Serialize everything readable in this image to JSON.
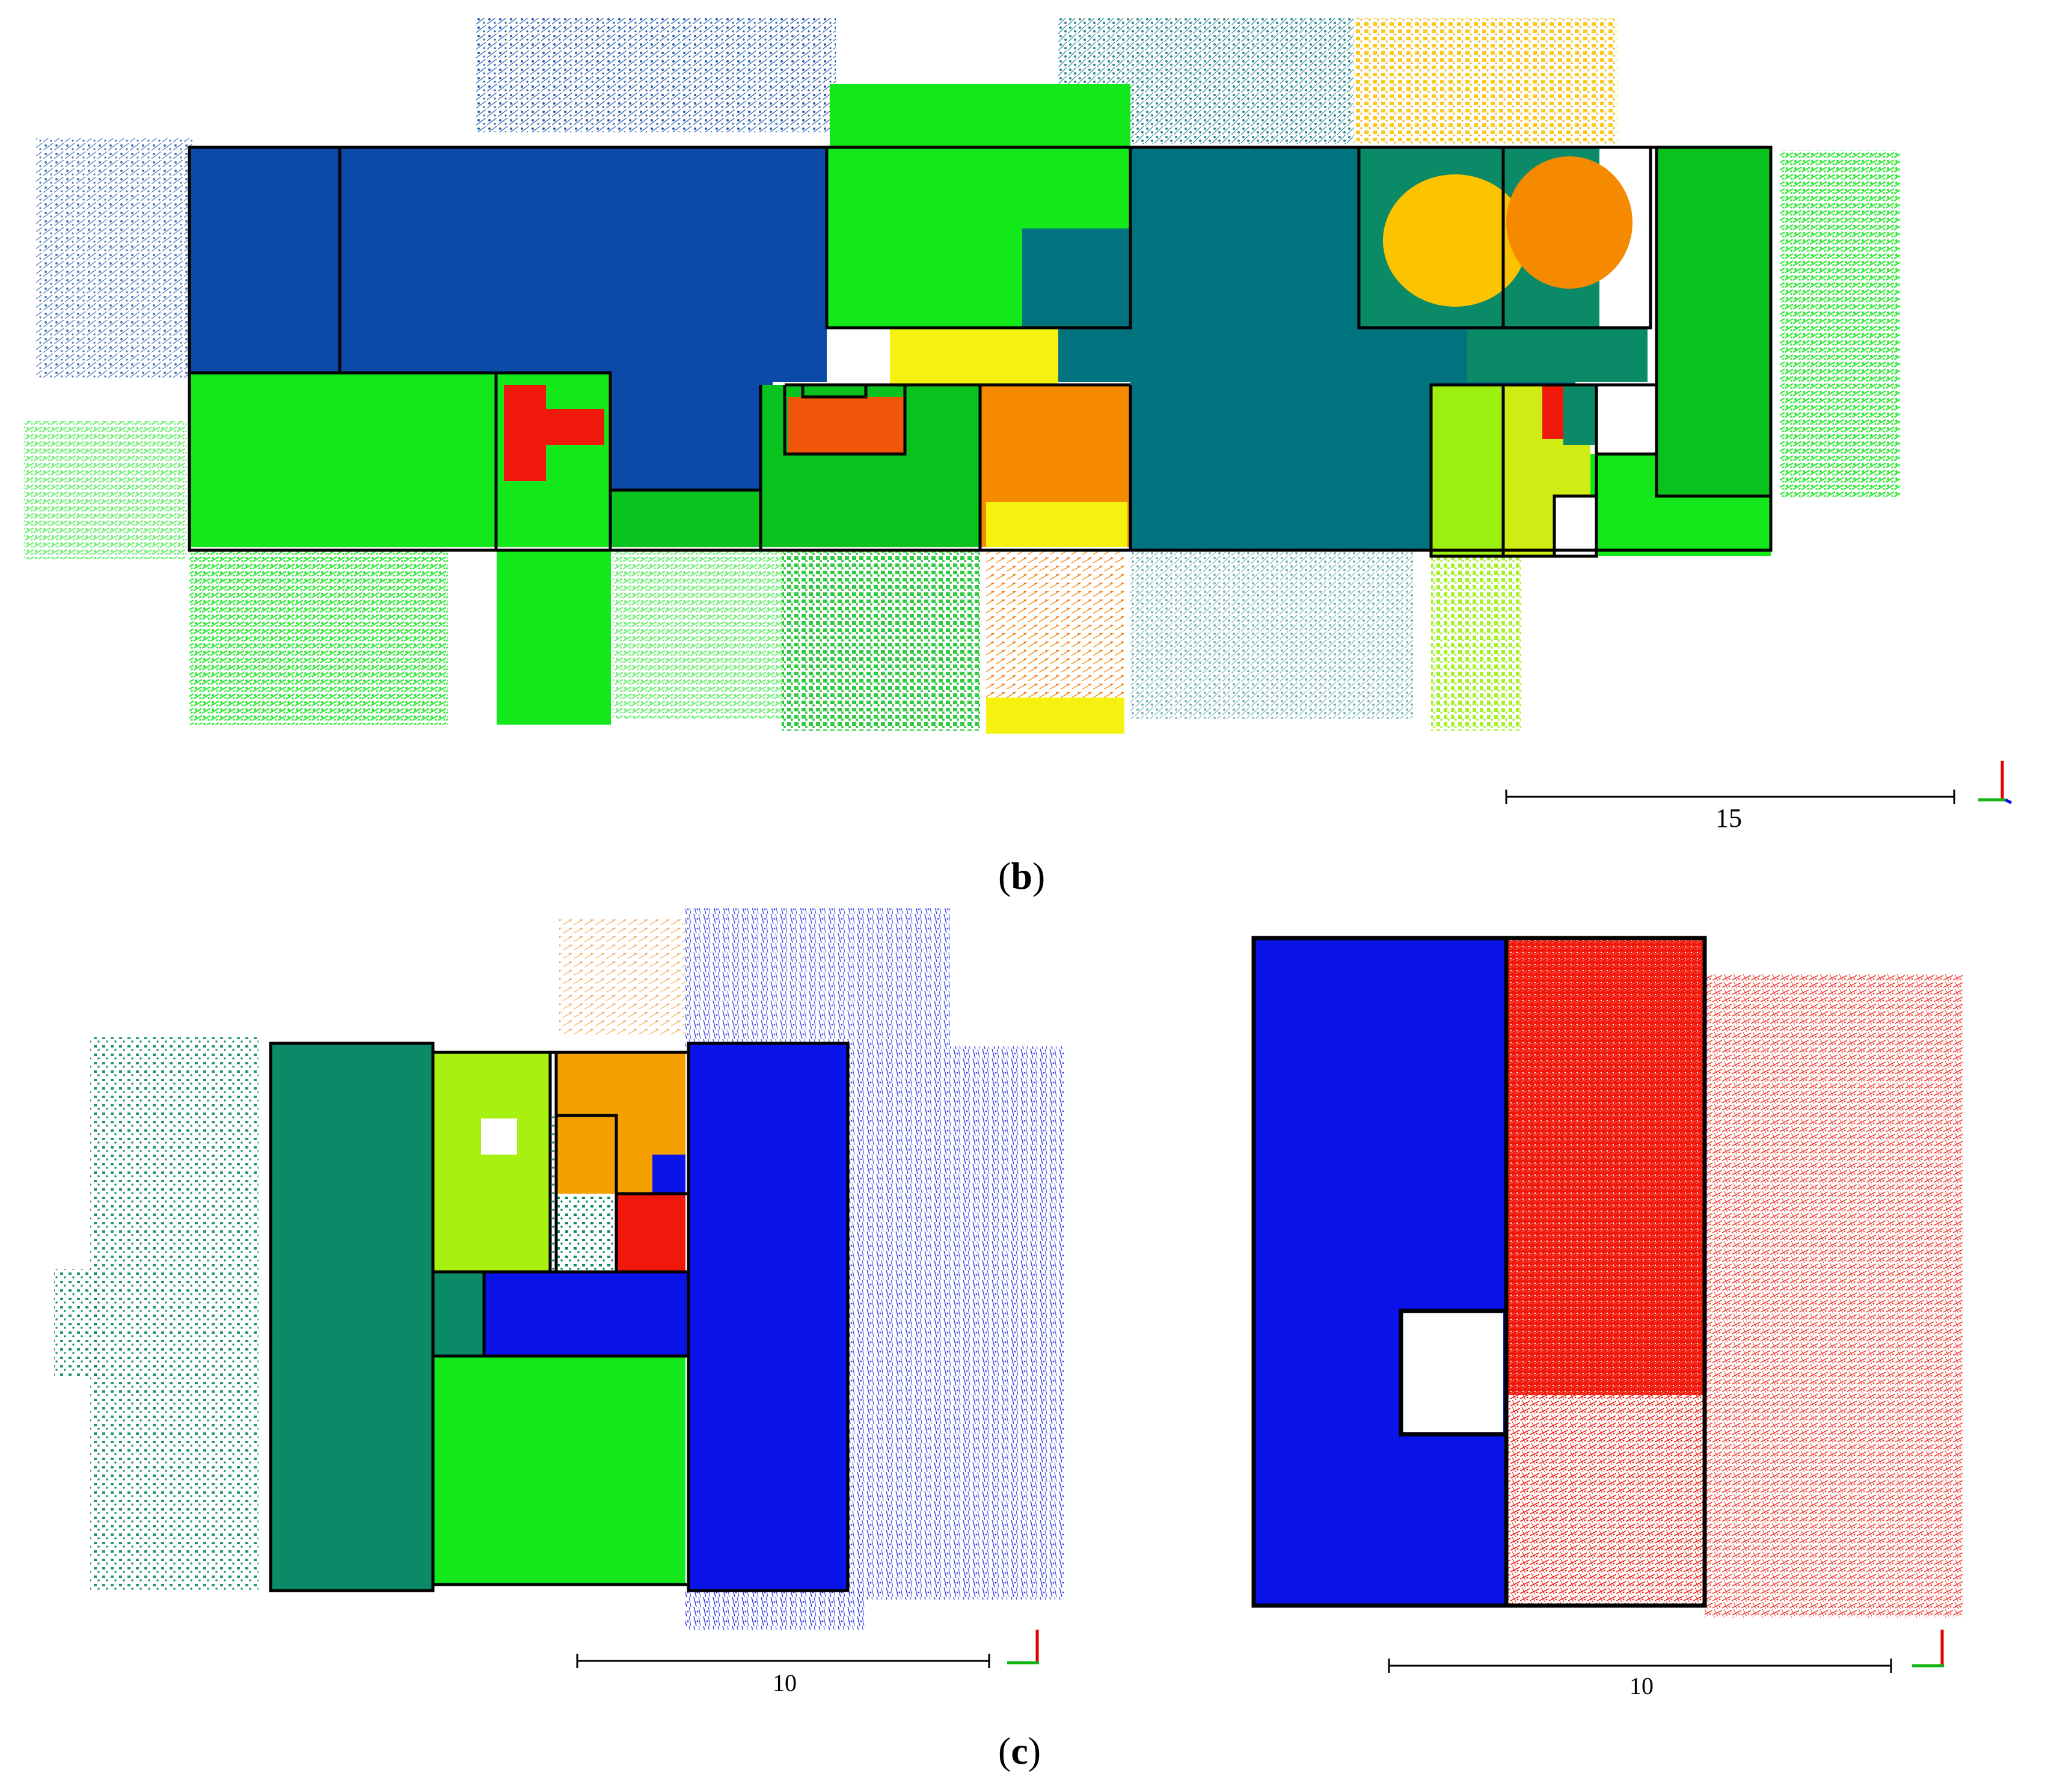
{
  "figure": {
    "panels": [
      {
        "id": "b",
        "caption": "b"
      },
      {
        "id": "c",
        "caption": "c"
      }
    ],
    "scale_bars": [
      {
        "panel": "b",
        "value": "15"
      },
      {
        "panel": "c-left",
        "value": "10"
      },
      {
        "panel": "c-right",
        "value": "10"
      }
    ],
    "colors": {
      "blue_dark": "#0b4aa6",
      "blue": "#0a14e8",
      "teal": "#00737f",
      "teal_green": "#0a8a66",
      "green": "#13e81a",
      "green_mid": "#0ac21e",
      "lime": "#9cf010",
      "yellow_green": "#cfec14",
      "yellow": "#f6f20f",
      "amber": "#fcc400",
      "orange": "#f58a00",
      "orange_red": "#f2560a",
      "red": "#f0180a",
      "outline": "#000000"
    }
  }
}
